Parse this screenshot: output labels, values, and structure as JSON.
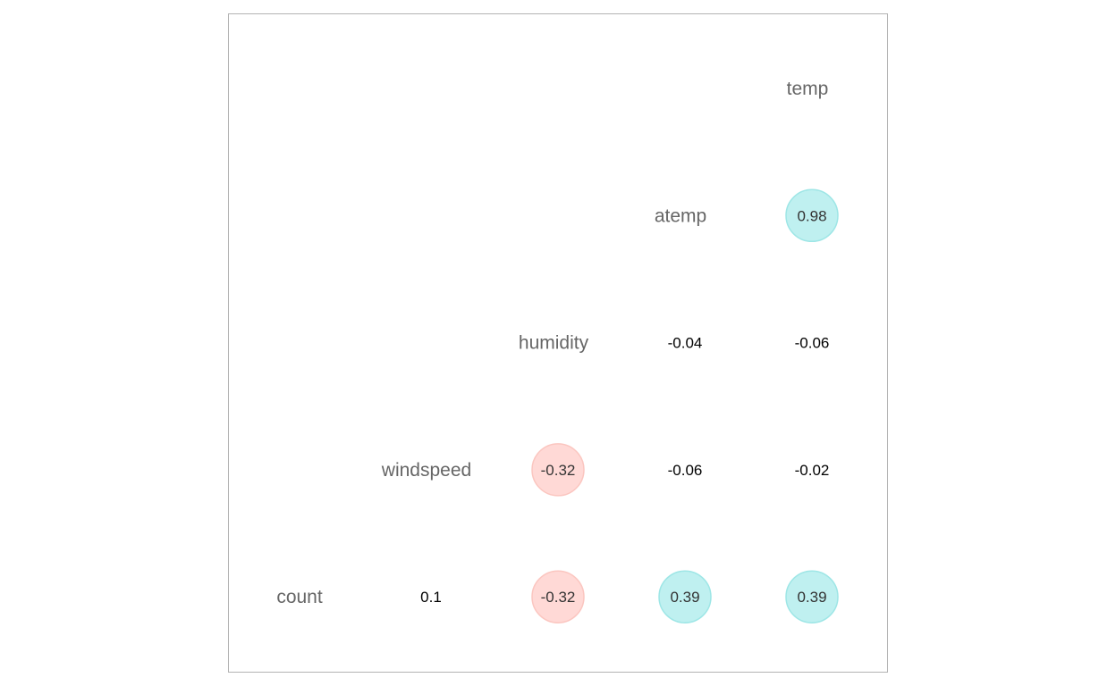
{
  "chart_data": {
    "type": "heatmap",
    "style": "correlation-triangle",
    "title": "",
    "variables": [
      "temp",
      "atemp",
      "humidity",
      "windspeed",
      "count"
    ],
    "cells": [
      {
        "row": "atemp",
        "col": "temp",
        "value": 0.98,
        "label": "0.98"
      },
      {
        "row": "humidity",
        "col": "atemp",
        "value": -0.04,
        "label": "-0.04"
      },
      {
        "row": "humidity",
        "col": "temp",
        "value": -0.06,
        "label": "-0.06"
      },
      {
        "row": "windspeed",
        "col": "humidity",
        "value": -0.32,
        "label": "-0.32"
      },
      {
        "row": "windspeed",
        "col": "atemp",
        "value": -0.06,
        "label": "-0.06"
      },
      {
        "row": "windspeed",
        "col": "temp",
        "value": -0.02,
        "label": "-0.02"
      },
      {
        "row": "count",
        "col": "windspeed",
        "value": 0.1,
        "label": "0.1"
      },
      {
        "row": "count",
        "col": "humidity",
        "value": -0.32,
        "label": "-0.32"
      },
      {
        "row": "count",
        "col": "atemp",
        "value": 0.39,
        "label": "0.39"
      },
      {
        "row": "count",
        "col": "temp",
        "value": 0.39,
        "label": "0.39"
      }
    ],
    "circle_threshold": 0.3,
    "colors": {
      "positive_fill": "#bff0f0",
      "positive_stroke": "#9ee6e6",
      "negative_fill": "#ffd9d6",
      "negative_stroke": "#fbc6c0",
      "panel_border": "#b3b3b3",
      "label": "#666666"
    },
    "legend": "none",
    "grid": false
  }
}
